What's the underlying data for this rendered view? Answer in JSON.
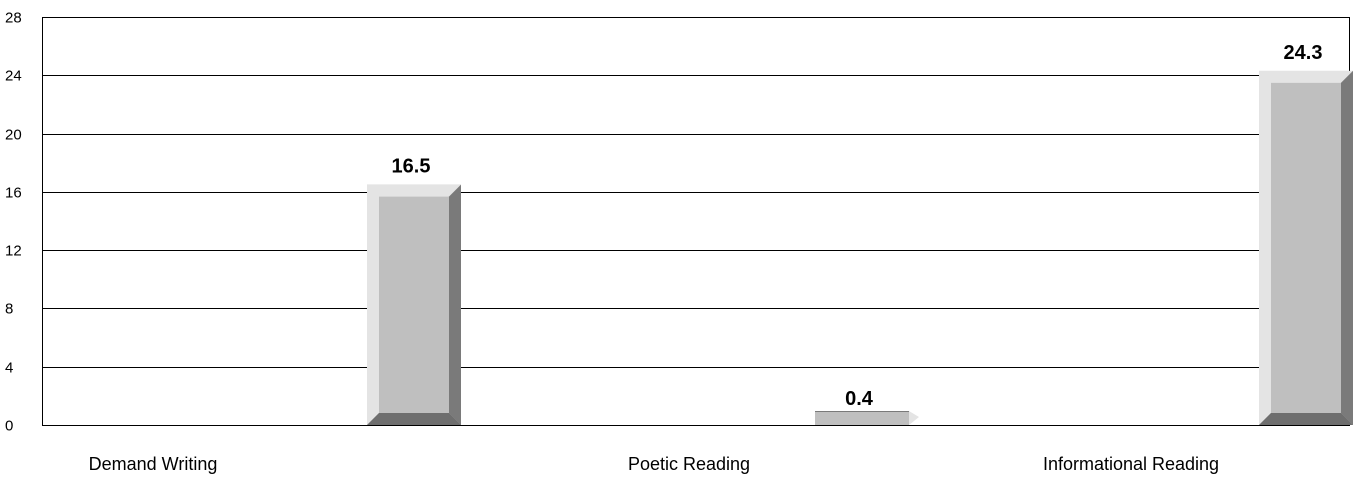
{
  "chart_data": {
    "type": "bar",
    "categories": [
      "Demand Writing",
      "Poetic Reading",
      "Informational Reading"
    ],
    "values": [
      16.5,
      0.4,
      24.3
    ],
    "data_labels": [
      "16.5",
      "0.4",
      "24.3"
    ],
    "title": "",
    "xlabel": "",
    "ylabel": "",
    "ylim": [
      0,
      28
    ],
    "yticks": [
      0,
      4,
      8,
      12,
      16,
      20,
      24,
      28
    ],
    "grid": true,
    "legend": "none",
    "colors": {
      "bar_front": "#bfbfbf",
      "bar_side": "#7a7a7a",
      "bar_highlight": "#e4e4e4",
      "bar_bottom": "#6e6e6e",
      "gridline": "#000000"
    }
  }
}
